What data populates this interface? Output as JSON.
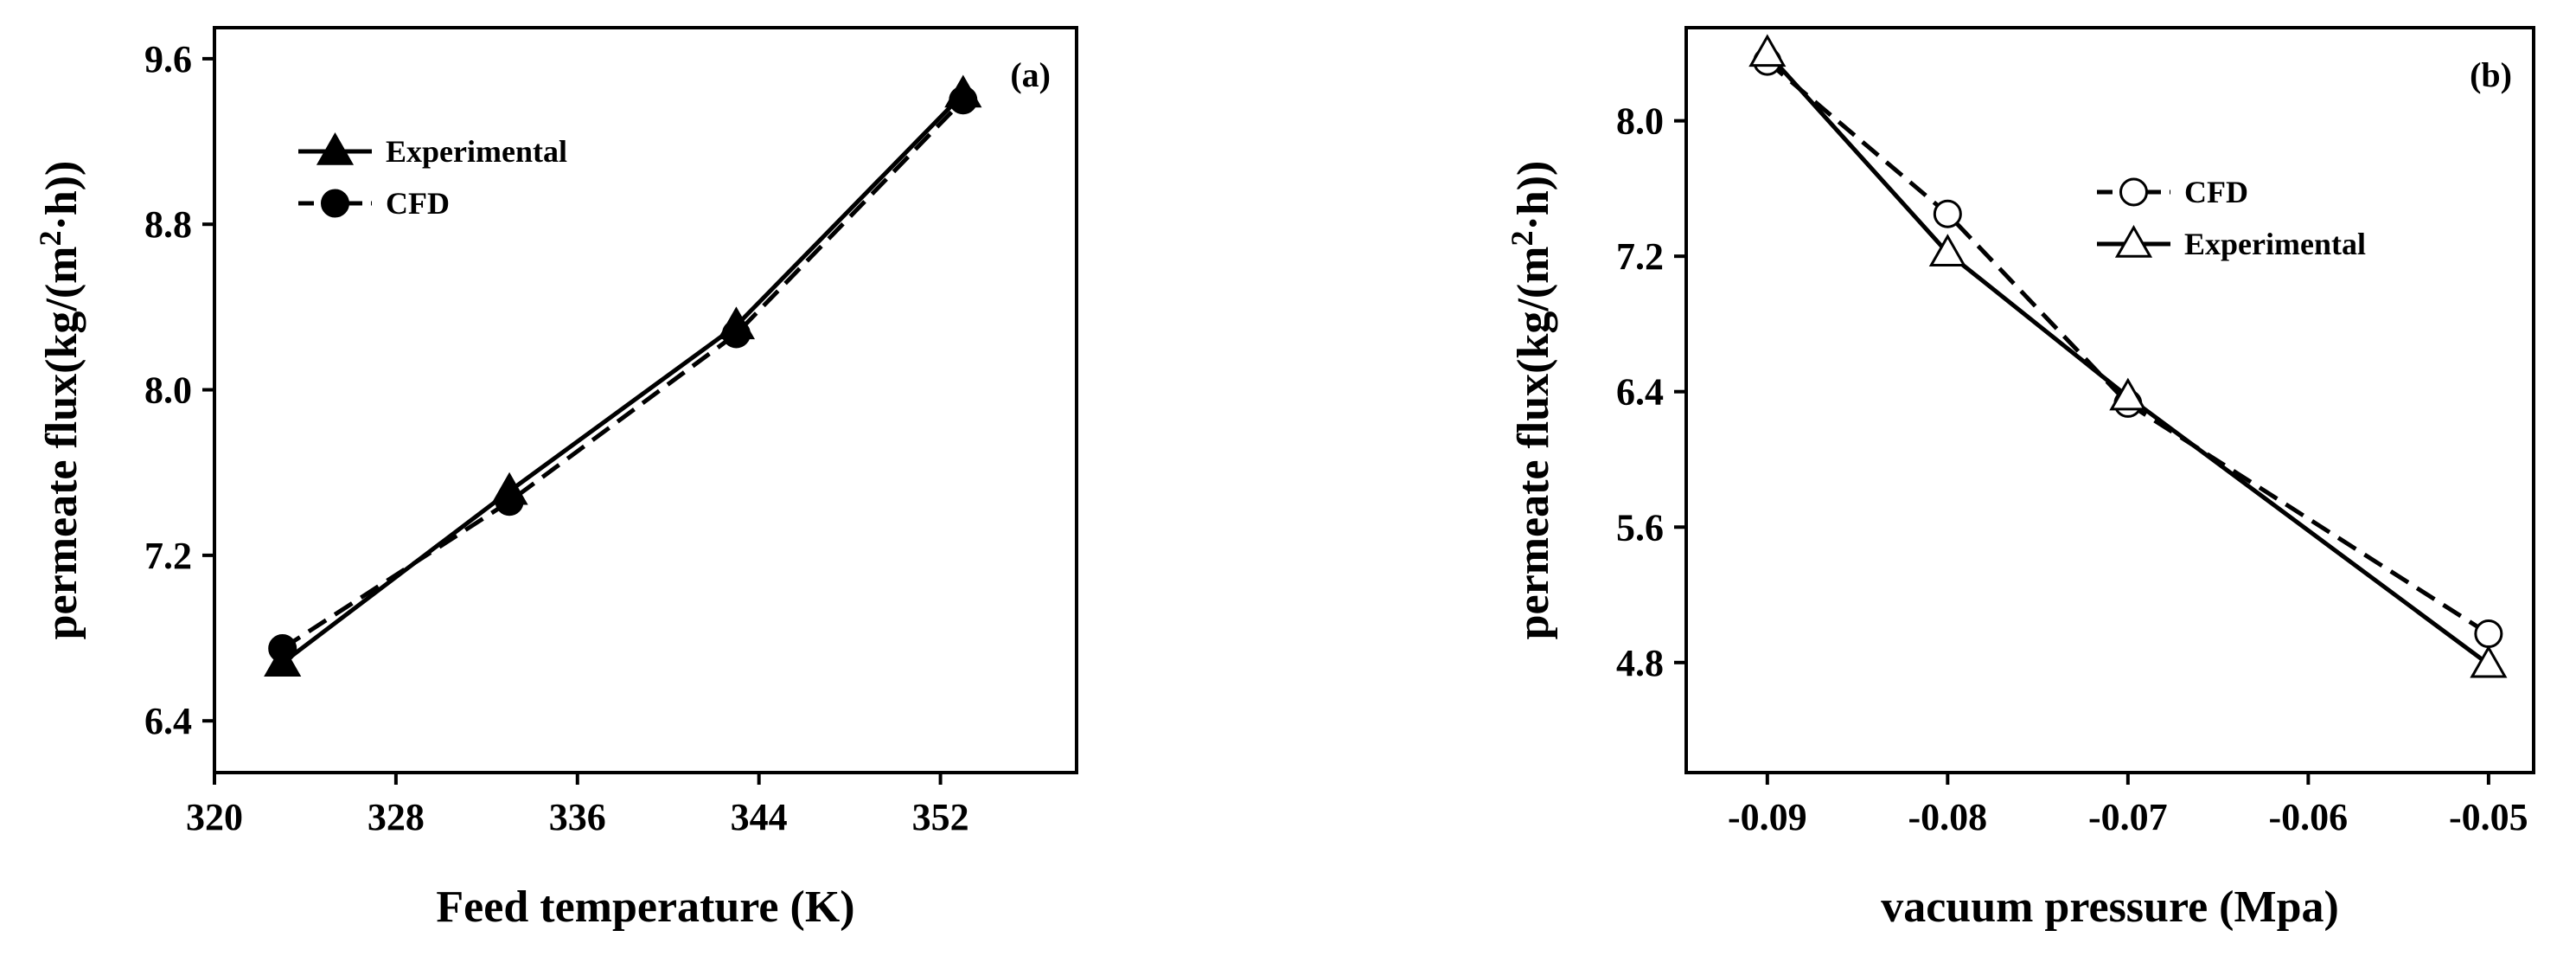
{
  "chart_data": [
    {
      "type": "line",
      "panel_label": "(a)",
      "xlabel": "Feed temperature (K)",
      "ylabel_main": "permeate flux(kg/(m",
      "ylabel_sup": "2",
      "ylabel_end": "·h))",
      "xlim": [
        320,
        358
      ],
      "ylim": [
        6.15,
        9.75
      ],
      "xticks": [
        320,
        328,
        336,
        344,
        352
      ],
      "yticks": [
        6.4,
        7.2,
        8.0,
        8.8,
        9.6
      ],
      "tick_decimals_y": 1,
      "tick_decimals_x": 0,
      "legend_position": "top-left",
      "series": [
        {
          "name": "Experimental",
          "marker": "triangle-filled",
          "line": "solid",
          "x": [
            323,
            333,
            343,
            353
          ],
          "y": [
            6.68,
            7.51,
            8.31,
            9.43
          ]
        },
        {
          "name": "CFD",
          "marker": "circle-filled",
          "line": "dashed",
          "x": [
            323,
            333,
            343,
            353
          ],
          "y": [
            6.75,
            7.46,
            8.27,
            9.4
          ]
        }
      ]
    },
    {
      "type": "line",
      "panel_label": "(b)",
      "xlabel": "vacuum pressure (Mpa)",
      "ylabel_main": "permeate flux(kg/(m",
      "ylabel_sup": "2",
      "ylabel_end": "·h))",
      "xlim": [
        -0.0945,
        -0.0475
      ],
      "ylim": [
        4.15,
        8.55
      ],
      "xticks": [
        -0.09,
        -0.08,
        -0.07,
        -0.06,
        -0.05
      ],
      "yticks": [
        4.8,
        5.6,
        6.4,
        7.2,
        8.0
      ],
      "tick_decimals_y": 1,
      "tick_decimals_x": 2,
      "legend_position": "top-right",
      "series": [
        {
          "name": "CFD",
          "marker": "circle-open",
          "line": "dashed",
          "x": [
            -0.09,
            -0.08,
            -0.07,
            -0.05
          ],
          "y": [
            8.35,
            7.45,
            6.33,
            4.97
          ]
        },
        {
          "name": "Experimental",
          "marker": "triangle-open",
          "line": "solid",
          "x": [
            -0.09,
            -0.08,
            -0.07,
            -0.05
          ],
          "y": [
            8.4,
            7.22,
            6.37,
            4.79
          ]
        }
      ]
    }
  ]
}
